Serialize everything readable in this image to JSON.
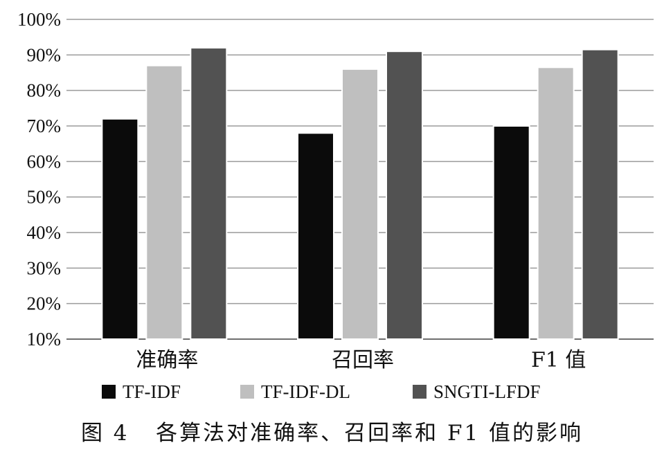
{
  "figure_caption": "图 4   各算法对准确率、召回率和 F1 值的影响",
  "chart_data": {
    "type": "bar",
    "title": "",
    "xlabel": "",
    "ylabel": "",
    "categories": [
      "准确率",
      "召回率",
      "F1 值"
    ],
    "series": [
      {
        "name": "TF-IDF",
        "values": [
          72,
          68,
          70
        ],
        "color": "#0b0b0b"
      },
      {
        "name": "TF-IDF-DL",
        "values": [
          87,
          86,
          86.5
        ],
        "color": "#bfbfbf"
      },
      {
        "name": "SNGTI-LFDF",
        "values": [
          92,
          91,
          91.5
        ],
        "color": "#525252"
      }
    ],
    "ylim": [
      10,
      100
    ],
    "y_ticks": [
      "10%",
      "20%",
      "30%",
      "40%",
      "50%",
      "60%",
      "70%",
      "80%",
      "90%",
      "100%"
    ],
    "grid": true,
    "legend_position": "bottom"
  }
}
